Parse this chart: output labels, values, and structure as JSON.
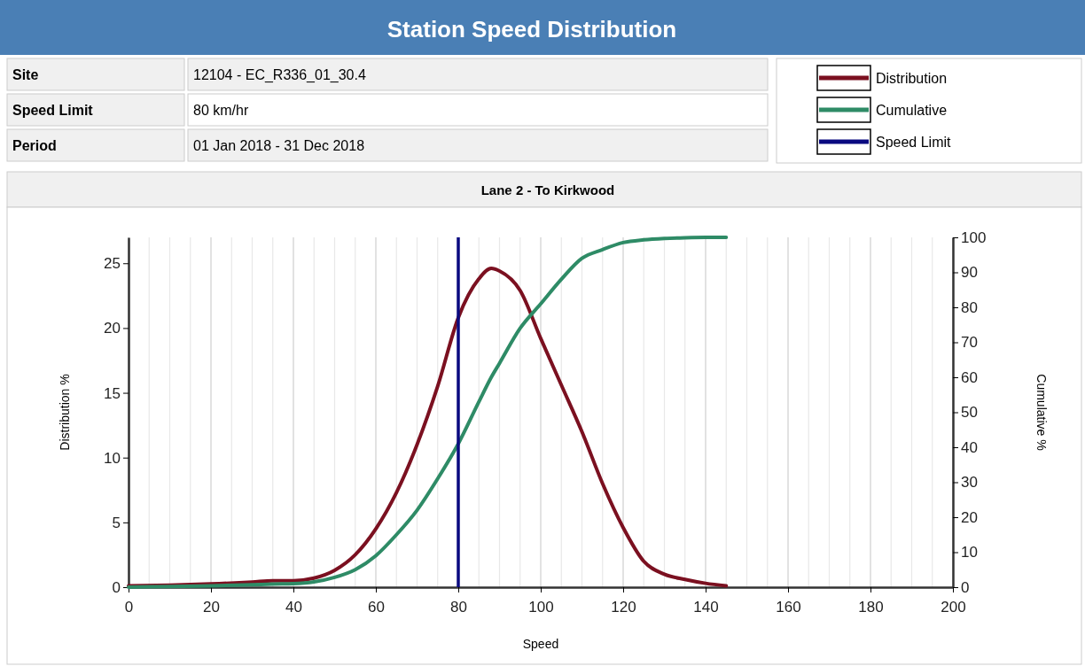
{
  "chart_data": {
    "type": "line",
    "title": "Station Speed Distribution",
    "subtitle": "Lane 2 - To Kirkwood",
    "annotations": [
      "Site",
      "12104 - EC_R336_01_30.4",
      "Speed Limit",
      "80 km/hr",
      "Period",
      "01 Jan 2018 - 31 Dec 2018"
    ],
    "xlabel": "Speed",
    "ylabel": "Distribution %",
    "y2label": "Cumulative %",
    "xlim": [
      0,
      200
    ],
    "xticks": [
      0,
      {
        "value": 5,
        "label": null
      },
      {
        "value": 10,
        "label": null
      },
      {
        "value": 15,
        "label": null
      },
      20,
      {
        "value": 25,
        "label": null
      },
      {
        "value": 30,
        "label": null
      },
      {
        "value": 35,
        "label": null
      },
      40,
      {
        "value": 45,
        "label": null
      },
      {
        "value": 50,
        "label": null
      },
      {
        "value": 55,
        "label": null
      },
      60,
      {
        "value": 65,
        "label": null
      },
      {
        "value": 70,
        "label": null
      },
      {
        "value": 75,
        "label": null
      },
      80,
      {
        "value": 85,
        "label": null
      },
      {
        "value": 90,
        "label": null
      },
      {
        "value": 95,
        "label": null
      },
      100,
      {
        "value": 105,
        "label": null
      },
      {
        "value": 110,
        "label": null
      },
      {
        "value": 115,
        "label": null
      },
      120,
      {
        "value": 125,
        "label": null
      },
      {
        "value": 130,
        "label": null
      },
      {
        "value": 135,
        "label": null
      },
      140,
      {
        "value": 145,
        "label": null
      },
      {
        "value": 150,
        "label": null
      },
      {
        "value": 155,
        "label": null
      },
      160,
      {
        "value": 165,
        "label": null
      },
      {
        "value": 170,
        "label": null
      },
      {
        "value": 175,
        "label": null
      },
      180,
      {
        "value": 185,
        "label": null
      },
      {
        "value": 190,
        "label": null
      },
      {
        "value": 195,
        "label": null
      },
      200
    ],
    "ylim": [
      0,
      27
    ],
    "yticks": [
      0,
      5,
      10,
      15,
      20,
      25
    ],
    "y2lim": [
      0,
      100
    ],
    "y2ticks": [
      0,
      10,
      20,
      30,
      40,
      50,
      60,
      70,
      80,
      90,
      100
    ],
    "grid": "x",
    "legend": "top right",
    "line_style": "solid",
    "marker": "none",
    "x": [
      0,
      10,
      20,
      30,
      35,
      40,
      45,
      50,
      55,
      60,
      65,
      70,
      75,
      80,
      85,
      88,
      90,
      95,
      100,
      105,
      110,
      115,
      120,
      125,
      130,
      135,
      140,
      145
    ],
    "series": [
      {
        "name": "Distribution",
        "color": "#7b1020",
        "axis": "y",
        "values": [
          0.1,
          0.15,
          0.25,
          0.4,
          0.5,
          0.5,
          0.7,
          1.3,
          2.5,
          4.5,
          7.3,
          11,
          15.5,
          20.8,
          23.8,
          24.6,
          24.4,
          22.9,
          19.2,
          15.6,
          12,
          8,
          4.6,
          2,
          1,
          0.6,
          0.3,
          0.1
        ]
      },
      {
        "name": "Cumulative",
        "color": "#2e8b66",
        "axis": "y2",
        "values": [
          0,
          0.2,
          0.4,
          0.7,
          0.9,
          1,
          1.5,
          2.8,
          5,
          9,
          15,
          22,
          31,
          41,
          53,
          60,
          64,
          74,
          81,
          88,
          94,
          96.5,
          98.5,
          99.3,
          99.7,
          99.9,
          100,
          100
        ]
      }
    ],
    "ref_lines": [
      {
        "axis": "x",
        "value": 80,
        "label": "Speed Limit",
        "color": "#0a0a80"
      }
    ]
  }
}
